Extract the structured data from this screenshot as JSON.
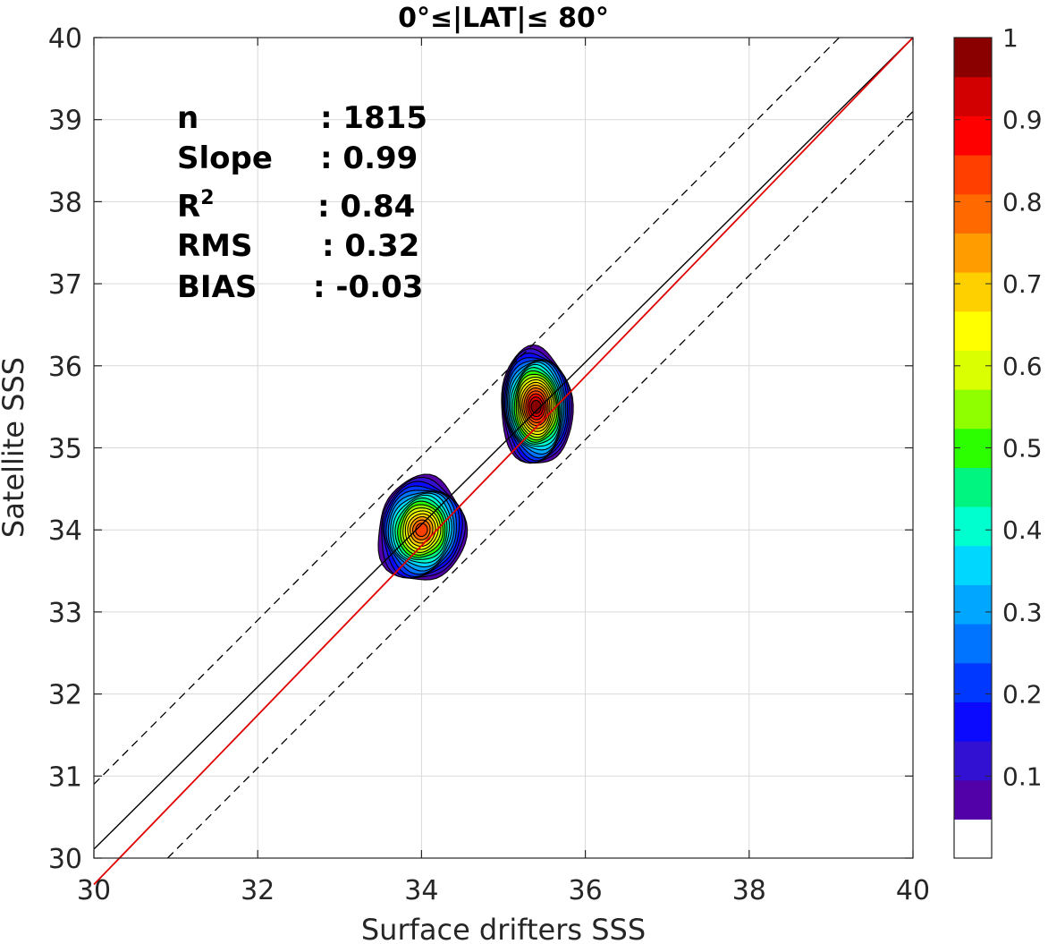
{
  "chart_data": {
    "type": "contour",
    "title": "0°≤|LAT|≤ 80°",
    "xlabel": "Surface drifters SSS",
    "ylabel": "Satellite SSS",
    "xlim": [
      30,
      40
    ],
    "ylim": [
      30,
      40
    ],
    "xticks": [
      "30",
      "32",
      "34",
      "36",
      "38",
      "40"
    ],
    "yticks": [
      "30",
      "31",
      "32",
      "33",
      "34",
      "35",
      "36",
      "37",
      "38",
      "39",
      "40"
    ],
    "grid": true,
    "stats": [
      {
        "label": "n",
        "sep": ":",
        "value": "1815"
      },
      {
        "label": "Slope",
        "sep": ":",
        "value": "0.99"
      },
      {
        "label": "R",
        "sup": "2",
        "sep": ":",
        "value": "0.84"
      },
      {
        "label": "RMS",
        "sep": ":",
        "value": "0.32"
      },
      {
        "label": "BIAS",
        "sep": ":",
        "value": "-0.03"
      }
    ],
    "reference_lines": {
      "one_to_one": {
        "color": "#000000",
        "style": "solid"
      },
      "fit": {
        "slope": 0.99,
        "intercept": -0.03,
        "color": "#e00000",
        "style": "solid"
      },
      "offsets": {
        "offset": 0.9,
        "color": "#000000",
        "style": "dashed"
      }
    },
    "density_peaks": [
      {
        "x": 34.0,
        "y": 34.0,
        "peak": 0.85
      },
      {
        "x": 35.4,
        "y": 35.5,
        "peak": 1.0
      }
    ],
    "colorbar": {
      "range": [
        0,
        1
      ],
      "ticks": [
        "0.1",
        "0.2",
        "0.3",
        "0.4",
        "0.5",
        "0.6",
        "0.7",
        "0.8",
        "0.9",
        "1"
      ],
      "colors": [
        "#ffffff",
        "#5200a8",
        "#3311d2",
        "#0b0aff",
        "#0038ff",
        "#0073ff",
        "#00a6ff",
        "#00d7ff",
        "#00ffcf",
        "#00f580",
        "#2bff00",
        "#8fff00",
        "#d9ff00",
        "#ffff00",
        "#ffd000",
        "#ff9d00",
        "#ff6900",
        "#ff3f00",
        "#ff0000",
        "#d20000",
        "#8a0000"
      ]
    }
  }
}
